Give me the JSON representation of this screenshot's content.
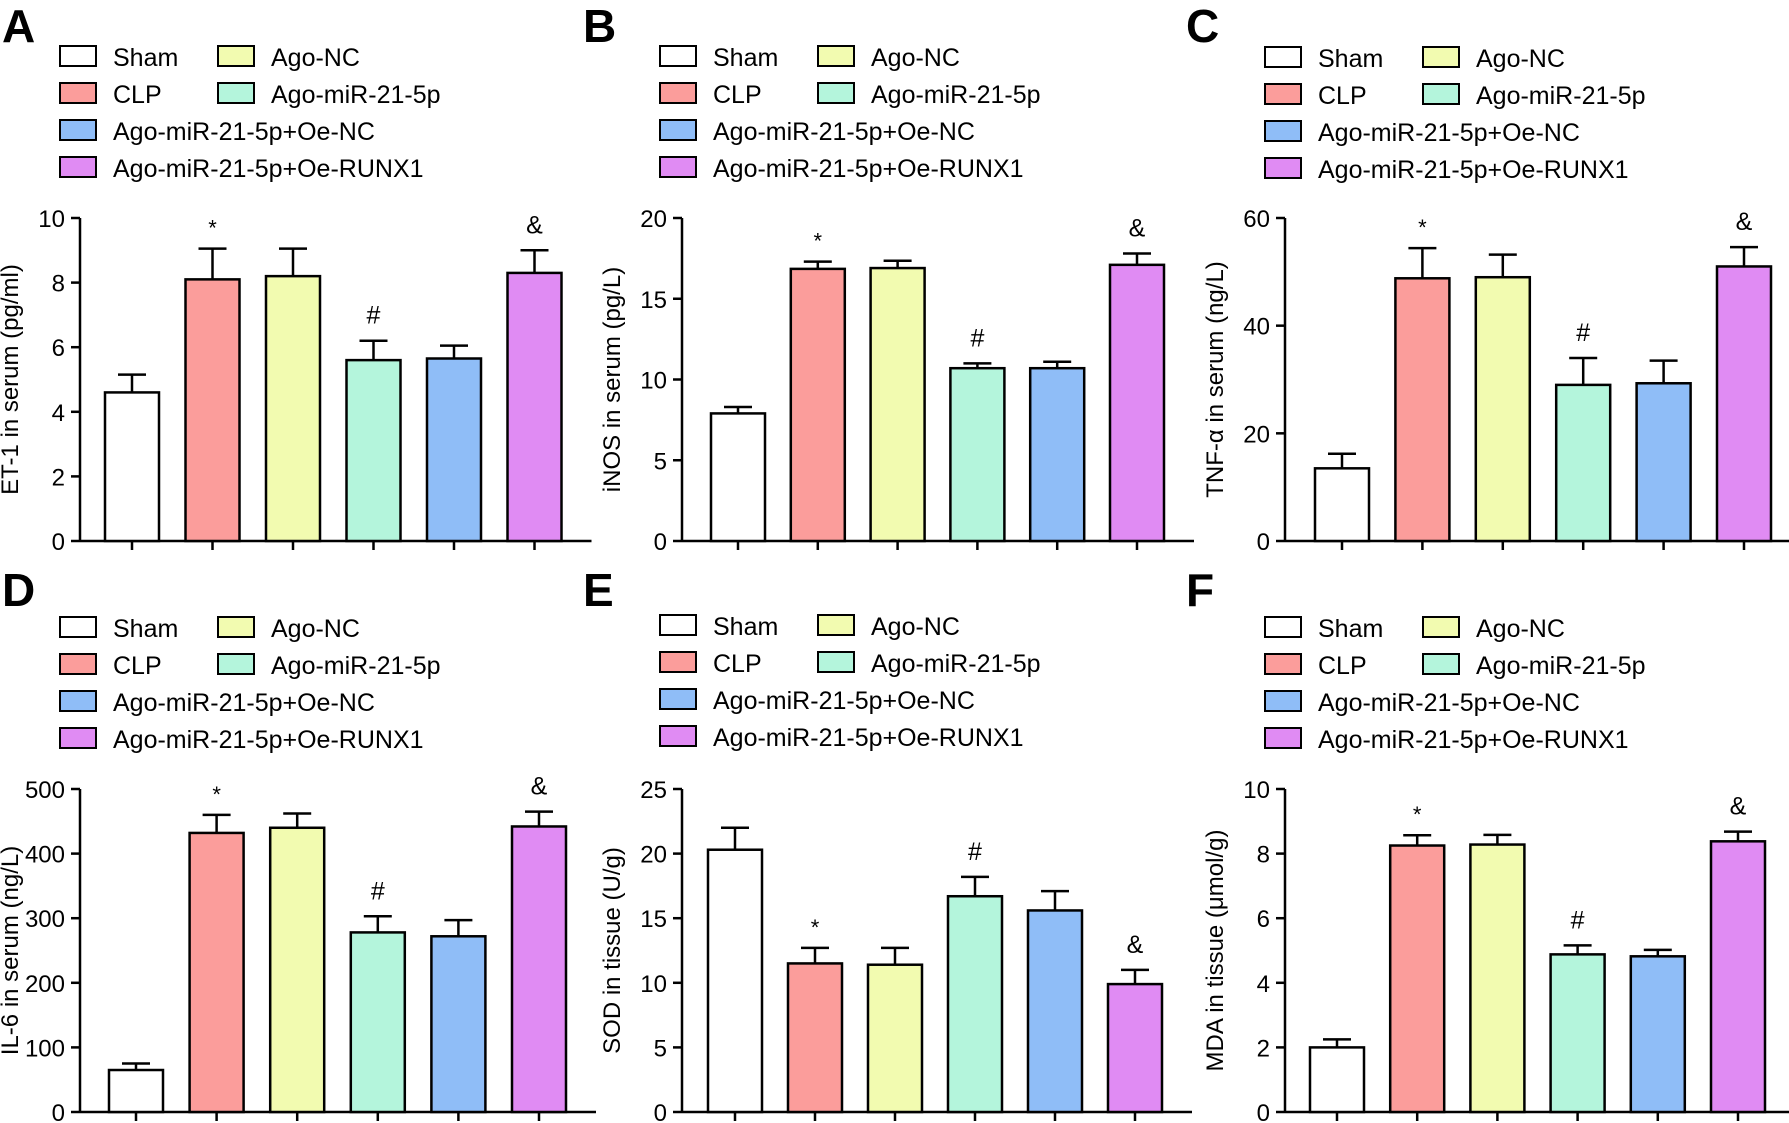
{
  "figure": {
    "group_colors": [
      "#ffffff",
      "#fb9d9b",
      "#f2fbb0",
      "#b4f5dc",
      "#8fbdf7",
      "#e08bf3"
    ],
    "legend": {
      "items": [
        "Sham",
        "CLP",
        "Ago-NC",
        "Ago-miR-21-5p",
        "Ago-miR-21-5p+Oe-NC",
        "Ago-miR-21-5p+Oe-RUNX1"
      ]
    }
  },
  "chart_data": [
    {
      "panel": "A",
      "type": "bar",
      "categories": [
        "Sham",
        "CLP",
        "Ago-NC",
        "Ago-miR-21-5p",
        "Ago-miR-21-5p+Oe-NC",
        "Ago-miR-21-5p+Oe-RUNX1"
      ],
      "values": [
        4.6,
        8.1,
        8.2,
        5.6,
        5.65,
        8.3
      ],
      "errors": [
        0.55,
        0.95,
        0.85,
        0.6,
        0.4,
        0.7
      ],
      "significance": [
        "",
        "*",
        "",
        "#",
        "",
        "&"
      ],
      "ylabel": "ET-1 in serum (pg/ml)",
      "ylim": [
        0,
        10
      ],
      "yticks": [
        "0",
        "2",
        "4",
        "6",
        "8",
        "10"
      ]
    },
    {
      "panel": "B",
      "type": "bar",
      "categories": [
        "Sham",
        "CLP",
        "Ago-NC",
        "Ago-miR-21-5p",
        "Ago-miR-21-5p+Oe-NC",
        "Ago-miR-21-5p+Oe-RUNX1"
      ],
      "values": [
        7.9,
        16.85,
        16.9,
        10.7,
        10.7,
        17.1
      ],
      "errors": [
        0.4,
        0.45,
        0.45,
        0.3,
        0.4,
        0.7
      ],
      "significance": [
        "",
        "*",
        "",
        "#",
        "",
        "&"
      ],
      "ylabel": "iNOS in serum (pg/L)",
      "ylim": [
        0,
        20
      ],
      "yticks": [
        "0",
        "5",
        "10",
        "15",
        "20"
      ]
    },
    {
      "panel": "C",
      "type": "bar",
      "categories": [
        "Sham",
        "CLP",
        "Ago-NC",
        "Ago-miR-21-5p",
        "Ago-miR-21-5p+Oe-NC",
        "Ago-miR-21-5p+Oe-RUNX1"
      ],
      "values": [
        13.5,
        48.8,
        49,
        29,
        29.3,
        51
      ],
      "errors": [
        2.7,
        5.6,
        4.2,
        5,
        4.2,
        3.6
      ],
      "significance": [
        "",
        "*",
        "",
        "#",
        "",
        "&"
      ],
      "ylabel": "TNF-α in serum (ng/L)",
      "ylim": [
        0,
        60
      ],
      "yticks": [
        "0",
        "20",
        "40",
        "60"
      ]
    },
    {
      "panel": "D",
      "type": "bar",
      "categories": [
        "Sham",
        "CLP",
        "Ago-NC",
        "Ago-miR-21-5p",
        "Ago-miR-21-5p+Oe-NC",
        "Ago-miR-21-5p+Oe-RUNX1"
      ],
      "values": [
        65,
        432,
        440,
        278,
        272,
        442
      ],
      "errors": [
        10,
        28,
        22,
        25,
        25,
        23
      ],
      "significance": [
        "",
        "*",
        "",
        "#",
        "",
        "&"
      ],
      "ylabel": "IL-6 in serum (ng/L)",
      "ylim": [
        0,
        500
      ],
      "yticks": [
        "0",
        "100",
        "200",
        "300",
        "400",
        "500"
      ]
    },
    {
      "panel": "E",
      "type": "bar",
      "categories": [
        "Sham",
        "CLP",
        "Ago-NC",
        "Ago-miR-21-5p",
        "Ago-miR-21-5p+Oe-NC",
        "Ago-miR-21-5p+Oe-RUNX1"
      ],
      "values": [
        20.3,
        11.5,
        11.4,
        16.7,
        15.6,
        9.9
      ],
      "errors": [
        1.7,
        1.2,
        1.3,
        1.5,
        1.5,
        1.1
      ],
      "significance": [
        "",
        "*",
        "",
        "#",
        "",
        "&"
      ],
      "ylabel": "SOD in tissue (U/g)",
      "ylim": [
        0,
        25
      ],
      "yticks": [
        "0",
        "5",
        "10",
        "15",
        "20",
        "25"
      ]
    },
    {
      "panel": "F",
      "type": "bar",
      "categories": [
        "Sham",
        "CLP",
        "Ago-NC",
        "Ago-miR-21-5p",
        "Ago-miR-21-5p+Oe-NC",
        "Ago-miR-21-5p+Oe-RUNX1"
      ],
      "values": [
        2,
        8.25,
        8.28,
        4.88,
        4.82,
        8.38
      ],
      "errors": [
        0.25,
        0.32,
        0.3,
        0.28,
        0.2,
        0.3
      ],
      "significance": [
        "",
        "*",
        "",
        "#",
        "",
        "&"
      ],
      "ylabel": "MDA in tissue (μmol/g)",
      "ylim": [
        0,
        10
      ],
      "yticks": [
        "0",
        "2",
        "4",
        "6",
        "8",
        "10"
      ]
    }
  ]
}
